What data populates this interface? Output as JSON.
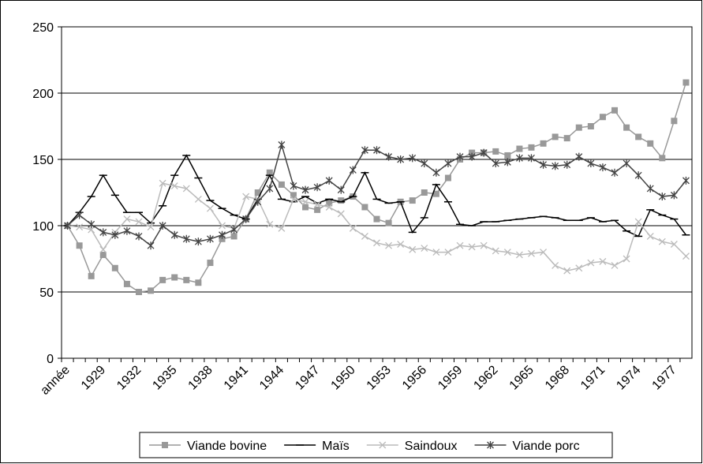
{
  "chart_data": {
    "type": "line",
    "categories": [
      "année",
      null,
      null,
      "1929",
      null,
      null,
      "1932",
      null,
      null,
      "1935",
      null,
      null,
      "1938",
      null,
      null,
      "1941",
      null,
      null,
      "1944",
      null,
      null,
      "1947",
      null,
      null,
      "1950",
      null,
      null,
      "1953",
      null,
      null,
      "1956",
      null,
      null,
      "1959",
      null,
      null,
      "1962",
      null,
      null,
      "1965",
      null,
      null,
      "1968",
      null,
      null,
      "1971",
      null,
      null,
      "1974",
      null,
      null,
      "1977",
      null
    ],
    "series": [
      {
        "name": "Viande bovine",
        "color": "#999999",
        "marker": "square",
        "values": [
          100,
          85,
          62,
          78,
          68,
          56,
          50,
          51,
          59,
          61,
          59,
          57,
          72,
          90,
          92,
          105,
          125,
          140,
          131,
          123,
          114,
          112,
          117,
          119,
          122,
          114,
          105,
          102,
          118,
          119,
          125,
          124,
          136,
          150,
          155,
          155,
          156,
          153,
          158,
          159,
          162,
          167,
          166,
          174,
          175,
          182,
          187,
          174,
          167,
          162,
          151,
          179,
          208
        ]
      },
      {
        "name": "Maïs",
        "color": "#000000",
        "marker": "dash",
        "values": [
          100,
          110,
          122,
          138,
          123,
          110,
          110,
          102,
          115,
          138,
          153,
          136,
          119,
          113,
          108,
          105,
          120,
          138,
          120,
          118,
          122,
          117,
          120,
          118,
          122,
          140,
          120,
          117,
          118,
          95,
          106,
          131,
          118,
          101,
          100,
          103,
          103,
          104,
          105,
          106,
          107,
          106,
          104,
          104,
          106,
          103,
          104,
          96,
          92,
          112,
          108,
          105,
          93
        ]
      },
      {
        "name": "Saindoux",
        "color": "#bbbbbb",
        "marker": "x",
        "values": [
          100,
          99,
          97,
          82,
          95,
          105,
          103,
          99,
          132,
          130,
          128,
          120,
          113,
          100,
          98,
          122,
          120,
          101,
          98,
          120,
          118,
          116,
          114,
          109,
          98,
          92,
          87,
          85,
          86,
          82,
          83,
          80,
          80,
          85,
          84,
          85,
          81,
          80,
          78,
          79,
          80,
          70,
          66,
          68,
          72,
          73,
          70,
          75,
          103,
          92,
          88,
          86,
          77
        ]
      },
      {
        "name": "Viande porc",
        "color": "#444444",
        "marker": "star",
        "values": [
          100,
          108,
          101,
          95,
          93,
          96,
          92,
          85,
          100,
          93,
          90,
          88,
          90,
          93,
          97,
          105,
          118,
          128,
          161,
          130,
          127,
          129,
          134,
          127,
          142,
          157,
          157,
          152,
          150,
          151,
          147,
          140,
          147,
          152,
          152,
          155,
          147,
          148,
          151,
          151,
          146,
          145,
          146,
          152,
          147,
          144,
          140,
          147,
          138,
          128,
          122,
          123,
          134
        ]
      }
    ],
    "ylim": [
      0,
      250
    ],
    "yticks": [
      0,
      50,
      100,
      150,
      200,
      250
    ],
    "grid": true,
    "legend": "bottom"
  }
}
